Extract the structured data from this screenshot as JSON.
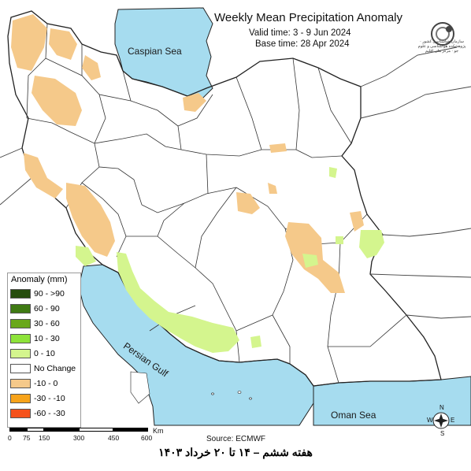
{
  "header": {
    "title": "Weekly Mean Precipitation Anomaly",
    "valid_time": "Valid time: 3 - 9 Jun 2024",
    "base_time": "Base time: 28 Apr 2024"
  },
  "logo": {
    "text": "سازمان هواشناسی کشور · پژوهشکده هواشناسی و علوم جو · مرکز ملی اقلیم"
  },
  "water_labels": {
    "caspian": "Caspian Sea",
    "gulf": "Persian Gulf",
    "oman": "Oman Sea"
  },
  "legend": {
    "title": "Anomaly (mm)",
    "items": [
      {
        "label": "90 - >90",
        "color": "#264d0d"
      },
      {
        "label": "60 - 90",
        "color": "#3f7a13"
      },
      {
        "label": "30 - 60",
        "color": "#6aa81a"
      },
      {
        "label": "10 - 30",
        "color": "#8ee33a"
      },
      {
        "label": "0 - 10",
        "color": "#d4f58e"
      },
      {
        "label": "No Change",
        "color": "#ffffff"
      },
      {
        "label": "-10 - 0",
        "color": "#f5c98a"
      },
      {
        "label": "-30 - -10",
        "color": "#f7a31a"
      },
      {
        "label": "-60 - -30",
        "color": "#f5521c"
      }
    ]
  },
  "scale_bar": {
    "labels": [
      "0",
      "75",
      "150",
      "300",
      "450",
      "600"
    ],
    "unit": "Km"
  },
  "compass": {
    "n": "N",
    "s": "S",
    "e": "E",
    "w": "W"
  },
  "source": "Source: ECMWF",
  "caption": "هفته ششم – ۱۴ تا ۲۰ خرداد ۱۴۰۳",
  "colors": {
    "sea": "#a6dcef",
    "land": "#ffffff",
    "border": "#222222",
    "dry": "#f5c98a",
    "wet": "#d4f58e"
  }
}
